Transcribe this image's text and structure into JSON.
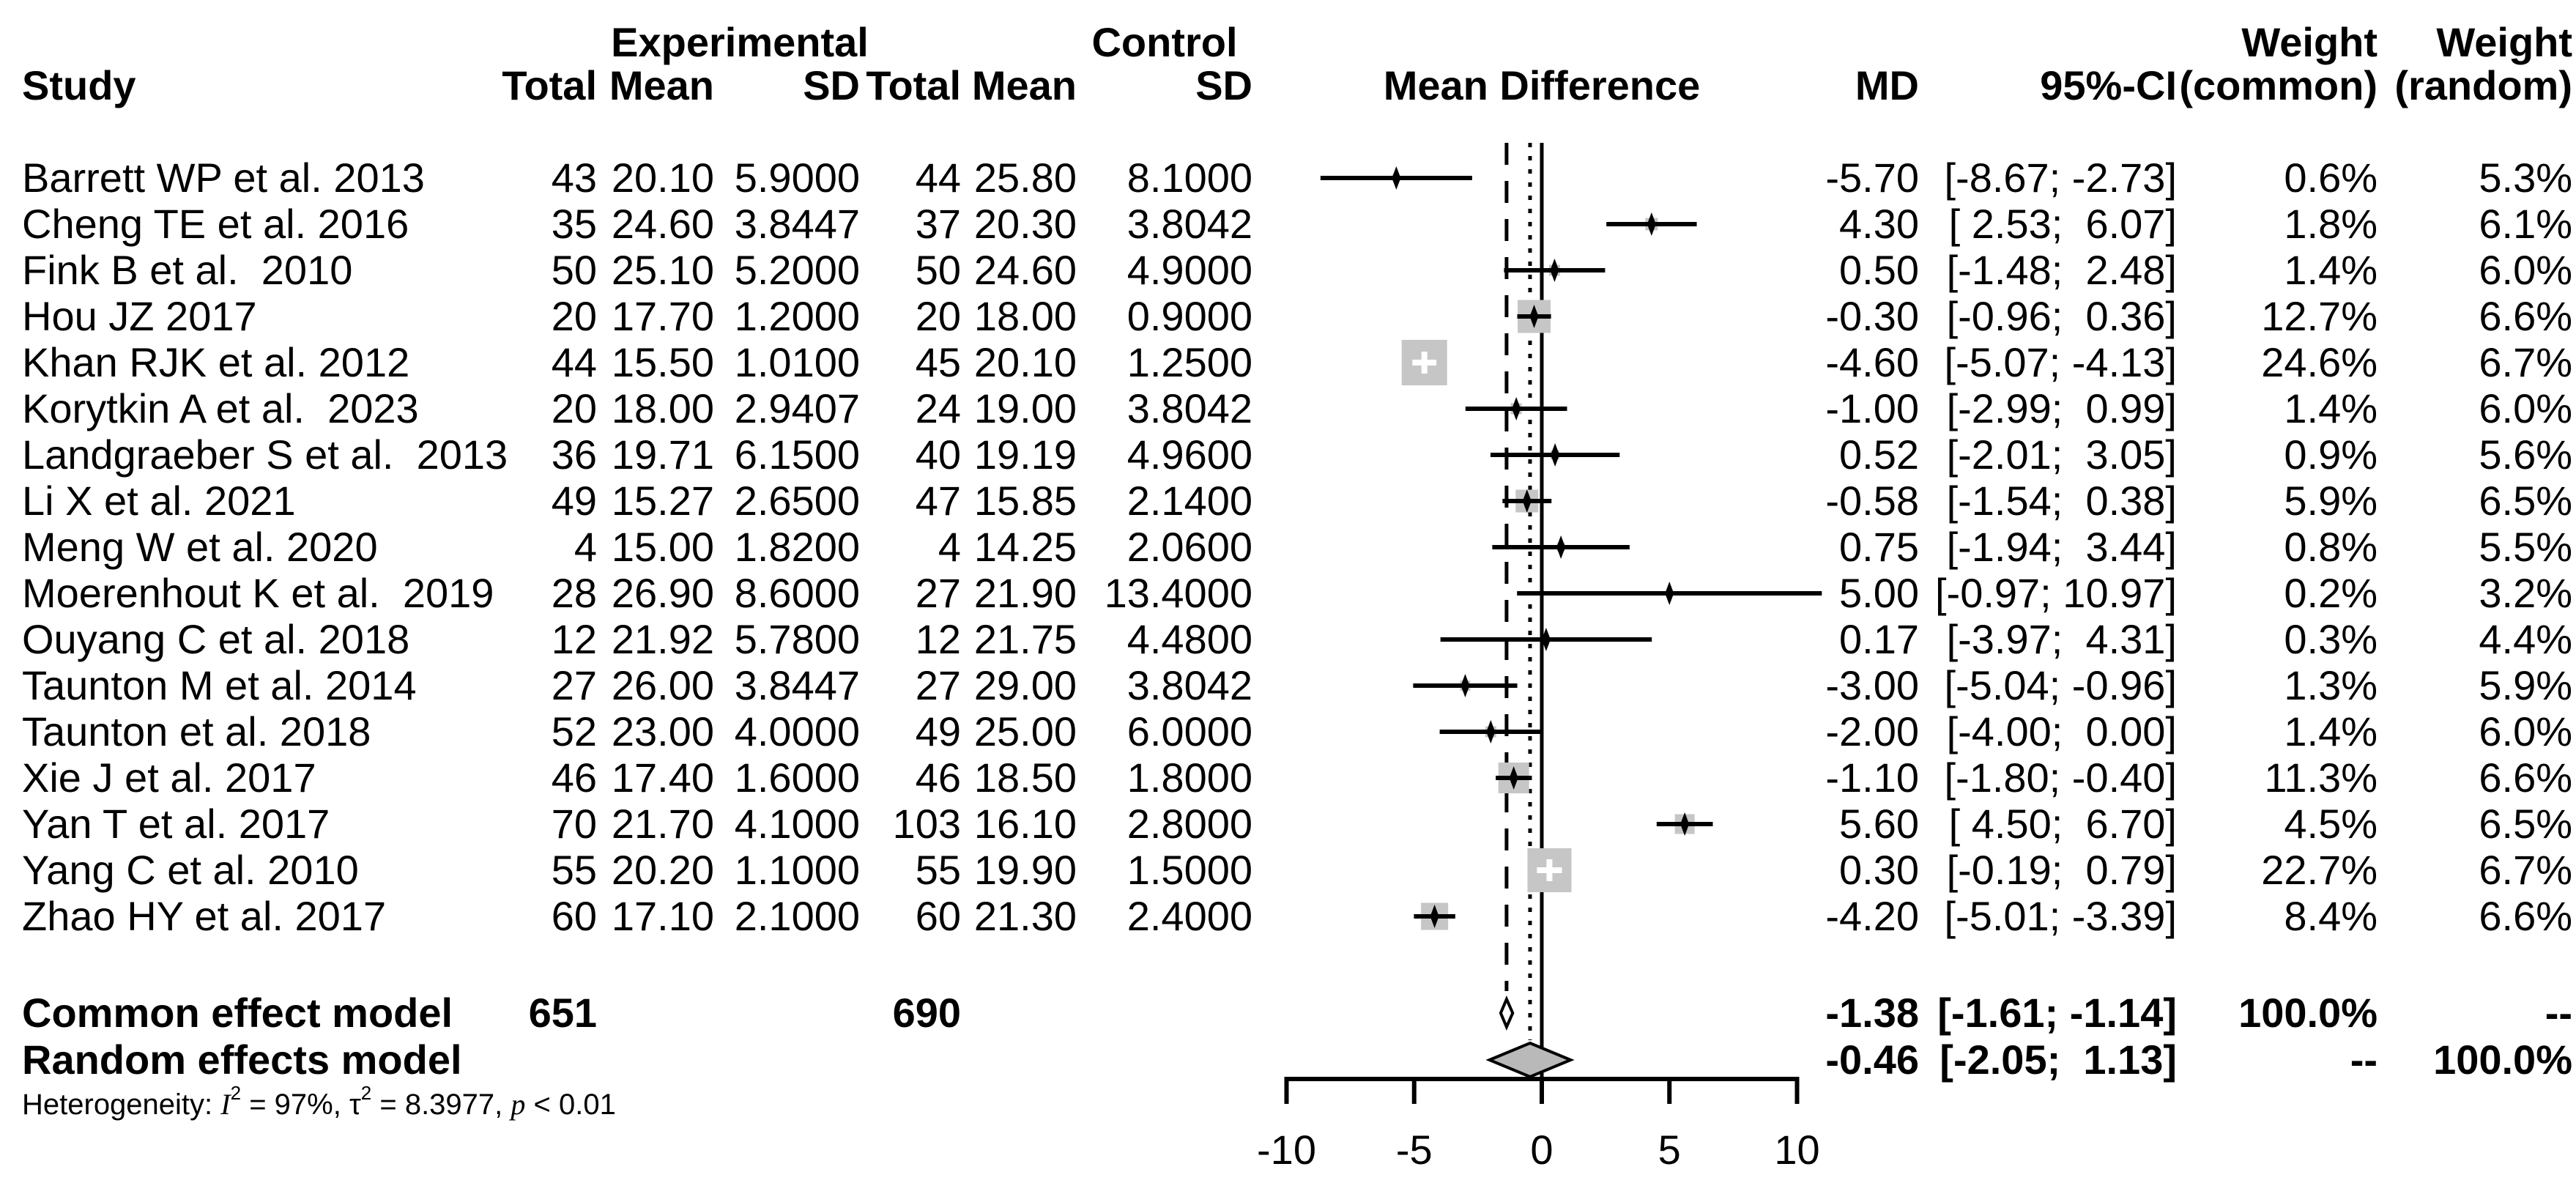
{
  "chart_data": {
    "type": "forest",
    "title": "",
    "effect_label": "Mean Difference",
    "headers": {
      "group_experimental": "Experimental",
      "group_control": "Control",
      "weight_common_top": "Weight",
      "weight_random_top": "Weight",
      "study": "Study",
      "total_exp": "Total",
      "mean_exp": "Mean",
      "sd_exp": "SD",
      "total_ctl": "Total",
      "mean_ctl": "Mean",
      "sd_ctl": "SD",
      "plot": "Mean Difference",
      "md": "MD",
      "ci": "95%-CI",
      "weight_common_bottom": "(common)",
      "weight_random_bottom": "(random)"
    },
    "xlim": [
      -10,
      10
    ],
    "x_ticks": [
      {
        "value": -10,
        "label": "-10"
      },
      {
        "value": -5,
        "label": "-5"
      },
      {
        "value": 0,
        "label": "0"
      },
      {
        "value": 5,
        "label": "5"
      },
      {
        "value": 10,
        "label": "10"
      }
    ],
    "ref_line": 0,
    "common_effect_line": -1.38,
    "random_effect_line": -0.46,
    "legend_position": "none",
    "grid": false,
    "marker_color": "#c6c6c6",
    "diamond_color": "#b9b9b9",
    "studies": [
      {
        "name": "Barrett WP et al. 2013",
        "n_exp": "43",
        "mean_exp": "20.10",
        "sd_exp": "5.9000",
        "n_ctl": "44",
        "mean_ctl": "25.80",
        "sd_ctl": "8.1000",
        "md": -5.7,
        "ci_low": -8.67,
        "ci_high": -2.73,
        "md_label": "-5.70",
        "ci_label": "[-8.67; -2.73]",
        "weight_common": 0.6,
        "weight_random": 5.3,
        "weight_common_label": "0.6%",
        "weight_random_label": "5.3%"
      },
      {
        "name": "Cheng TE et al. 2016",
        "n_exp": "35",
        "mean_exp": "24.60",
        "sd_exp": "3.8447",
        "n_ctl": "37",
        "mean_ctl": "20.30",
        "sd_ctl": "3.8042",
        "md": 4.3,
        "ci_low": 2.53,
        "ci_high": 6.07,
        "md_label": "4.30",
        "ci_label": "[ 2.53;  6.07]",
        "weight_common": 1.8,
        "weight_random": 6.1,
        "weight_common_label": "1.8%",
        "weight_random_label": "6.1%"
      },
      {
        "name": "Fink B et al.  2010",
        "n_exp": "50",
        "mean_exp": "25.10",
        "sd_exp": "5.2000",
        "n_ctl": "50",
        "mean_ctl": "24.60",
        "sd_ctl": "4.9000",
        "md": 0.5,
        "ci_low": -1.48,
        "ci_high": 2.48,
        "md_label": "0.50",
        "ci_label": "[-1.48;  2.48]",
        "weight_common": 1.4,
        "weight_random": 6.0,
        "weight_common_label": "1.4%",
        "weight_random_label": "6.0%"
      },
      {
        "name": "Hou JZ 2017",
        "n_exp": "20",
        "mean_exp": "17.70",
        "sd_exp": "1.2000",
        "n_ctl": "20",
        "mean_ctl": "18.00",
        "sd_ctl": "0.9000",
        "md": -0.3,
        "ci_low": -0.96,
        "ci_high": 0.36,
        "md_label": "-0.30",
        "ci_label": "[-0.96;  0.36]",
        "weight_common": 12.7,
        "weight_random": 6.6,
        "weight_common_label": "12.7%",
        "weight_random_label": "6.6%"
      },
      {
        "name": "Khan RJK et al. 2012",
        "n_exp": "44",
        "mean_exp": "15.50",
        "sd_exp": "1.0100",
        "n_ctl": "45",
        "mean_ctl": "20.10",
        "sd_ctl": "1.2500",
        "md": -4.6,
        "ci_low": -5.07,
        "ci_high": -4.13,
        "md_label": "-4.60",
        "ci_label": "[-5.07; -4.13]",
        "weight_common": 24.6,
        "weight_random": 6.7,
        "weight_common_label": "24.6%",
        "weight_random_label": "6.7%"
      },
      {
        "name": "Korytkin A et al.  2023",
        "n_exp": "20",
        "mean_exp": "18.00",
        "sd_exp": "2.9407",
        "n_ctl": "24",
        "mean_ctl": "19.00",
        "sd_ctl": "3.8042",
        "md": -1.0,
        "ci_low": -2.99,
        "ci_high": 0.99,
        "md_label": "-1.00",
        "ci_label": "[-2.99;  0.99]",
        "weight_common": 1.4,
        "weight_random": 6.0,
        "weight_common_label": "1.4%",
        "weight_random_label": "6.0%"
      },
      {
        "name": "Landgraeber S et al.  2013",
        "n_exp": "36",
        "mean_exp": "19.71",
        "sd_exp": "6.1500",
        "n_ctl": "40",
        "mean_ctl": "19.19",
        "sd_ctl": "4.9600",
        "md": 0.52,
        "ci_low": -2.01,
        "ci_high": 3.05,
        "md_label": "0.52",
        "ci_label": "[-2.01;  3.05]",
        "weight_common": 0.9,
        "weight_random": 5.6,
        "weight_common_label": "0.9%",
        "weight_random_label": "5.6%"
      },
      {
        "name": "Li X et al. 2021",
        "n_exp": "49",
        "mean_exp": "15.27",
        "sd_exp": "2.6500",
        "n_ctl": "47",
        "mean_ctl": "15.85",
        "sd_ctl": "2.1400",
        "md": -0.58,
        "ci_low": -1.54,
        "ci_high": 0.38,
        "md_label": "-0.58",
        "ci_label": "[-1.54;  0.38]",
        "weight_common": 5.9,
        "weight_random": 6.5,
        "weight_common_label": "5.9%",
        "weight_random_label": "6.5%"
      },
      {
        "name": "Meng W et al. 2020",
        "n_exp": "4",
        "mean_exp": "15.00",
        "sd_exp": "1.8200",
        "n_ctl": "4",
        "mean_ctl": "14.25",
        "sd_ctl": "2.0600",
        "md": 0.75,
        "ci_low": -1.94,
        "ci_high": 3.44,
        "md_label": "0.75",
        "ci_label": "[-1.94;  3.44]",
        "weight_common": 0.8,
        "weight_random": 5.5,
        "weight_common_label": "0.8%",
        "weight_random_label": "5.5%"
      },
      {
        "name": "Moerenhout K et al.  2019",
        "n_exp": "28",
        "mean_exp": "26.90",
        "sd_exp": "8.6000",
        "n_ctl": "27",
        "mean_ctl": "21.90",
        "sd_ctl": "13.4000",
        "md": 5.0,
        "ci_low": -0.97,
        "ci_high": 10.97,
        "md_label": "5.00",
        "ci_label": "[-0.97; 10.97]",
        "weight_common": 0.2,
        "weight_random": 3.2,
        "weight_common_label": "0.2%",
        "weight_random_label": "3.2%"
      },
      {
        "name": "Ouyang C et al. 2018",
        "n_exp": "12",
        "mean_exp": "21.92",
        "sd_exp": "5.7800",
        "n_ctl": "12",
        "mean_ctl": "21.75",
        "sd_ctl": "4.4800",
        "md": 0.17,
        "ci_low": -3.97,
        "ci_high": 4.31,
        "md_label": "0.17",
        "ci_label": "[-3.97;  4.31]",
        "weight_common": 0.3,
        "weight_random": 4.4,
        "weight_common_label": "0.3%",
        "weight_random_label": "4.4%"
      },
      {
        "name": "Taunton M et al. 2014",
        "n_exp": "27",
        "mean_exp": "26.00",
        "sd_exp": "3.8447",
        "n_ctl": "27",
        "mean_ctl": "29.00",
        "sd_ctl": "3.8042",
        "md": -3.0,
        "ci_low": -5.04,
        "ci_high": -0.96,
        "md_label": "-3.00",
        "ci_label": "[-5.04; -0.96]",
        "weight_common": 1.3,
        "weight_random": 5.9,
        "weight_common_label": "1.3%",
        "weight_random_label": "5.9%"
      },
      {
        "name": "Taunton et al. 2018",
        "n_exp": "52",
        "mean_exp": "23.00",
        "sd_exp": "4.0000",
        "n_ctl": "49",
        "mean_ctl": "25.00",
        "sd_ctl": "6.0000",
        "md": -2.0,
        "ci_low": -4.0,
        "ci_high": 0.0,
        "md_label": "-2.00",
        "ci_label": "[-4.00;  0.00]",
        "weight_common": 1.4,
        "weight_random": 6.0,
        "weight_common_label": "1.4%",
        "weight_random_label": "6.0%"
      },
      {
        "name": "Xie J et al. 2017",
        "n_exp": "46",
        "mean_exp": "17.40",
        "sd_exp": "1.6000",
        "n_ctl": "46",
        "mean_ctl": "18.50",
        "sd_ctl": "1.8000",
        "md": -1.1,
        "ci_low": -1.8,
        "ci_high": -0.4,
        "md_label": "-1.10",
        "ci_label": "[-1.80; -0.40]",
        "weight_common": 11.3,
        "weight_random": 6.6,
        "weight_common_label": "11.3%",
        "weight_random_label": "6.6%"
      },
      {
        "name": "Yan T et al. 2017",
        "n_exp": "70",
        "mean_exp": "21.70",
        "sd_exp": "4.1000",
        "n_ctl": "103",
        "mean_ctl": "16.10",
        "sd_ctl": "2.8000",
        "md": 5.6,
        "ci_low": 4.5,
        "ci_high": 6.7,
        "md_label": "5.60",
        "ci_label": "[ 4.50;  6.70]",
        "weight_common": 4.5,
        "weight_random": 6.5,
        "weight_common_label": "4.5%",
        "weight_random_label": "6.5%"
      },
      {
        "name": "Yang C et al. 2010",
        "n_exp": "55",
        "mean_exp": "20.20",
        "sd_exp": "1.1000",
        "n_ctl": "55",
        "mean_ctl": "19.90",
        "sd_ctl": "1.5000",
        "md": 0.3,
        "ci_low": -0.19,
        "ci_high": 0.79,
        "md_label": "0.30",
        "ci_label": "[-0.19;  0.79]",
        "weight_common": 22.7,
        "weight_random": 6.7,
        "weight_common_label": "22.7%",
        "weight_random_label": "6.7%"
      },
      {
        "name": "Zhao HY et al. 2017",
        "n_exp": "60",
        "mean_exp": "17.10",
        "sd_exp": "2.1000",
        "n_ctl": "60",
        "mean_ctl": "21.30",
        "sd_ctl": "2.4000",
        "md": -4.2,
        "ci_low": -5.01,
        "ci_high": -3.39,
        "md_label": "-4.20",
        "ci_label": "[-5.01; -3.39]",
        "weight_common": 8.4,
        "weight_random": 6.6,
        "weight_common_label": "8.4%",
        "weight_random_label": "6.6%"
      }
    ],
    "summaries": [
      {
        "label": "Common effect model",
        "total_exp": "651",
        "total_ctl": "690",
        "md": -1.38,
        "ci_low": -1.61,
        "ci_high": -1.14,
        "md_label": "-1.38",
        "ci_label": "[-1.61; -1.14]",
        "weight_common_label": "100.0%",
        "weight_random_label": "--",
        "shape": "diamond_open"
      },
      {
        "label": "Random effects model",
        "total_exp": "",
        "total_ctl": "",
        "md": -0.46,
        "ci_low": -2.05,
        "ci_high": 1.13,
        "md_label": "-0.46",
        "ci_label": "[-2.05;  1.13]",
        "weight_common_label": "--",
        "weight_random_label": "100.0%",
        "shape": "diamond_filled"
      }
    ]
  },
  "heterogeneity": {
    "prefix": "Heterogeneity: ",
    "stat1": "I",
    "sup1": "2",
    "mid1": " = 97%, ",
    "stat2": "τ",
    "sup2": "2",
    "mid2": " = 8.3977, ",
    "stat3": "p",
    "tail": " < 0.01"
  }
}
